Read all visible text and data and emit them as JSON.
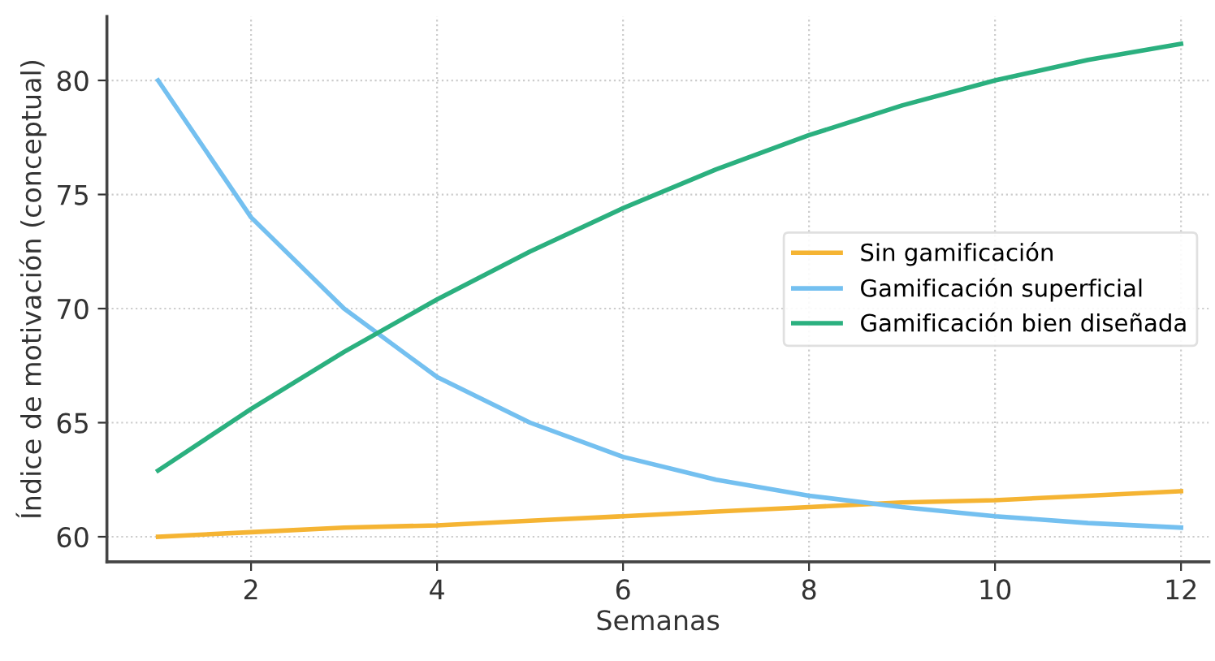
{
  "chart_data": {
    "type": "line",
    "xlabel": "Semanas",
    "ylabel": "Índice de motivación (conceptual)",
    "x": [
      1,
      2,
      3,
      4,
      5,
      6,
      7,
      8,
      9,
      10,
      11,
      12
    ],
    "series": [
      {
        "name": "Sin gamificación",
        "color": "#f5b433",
        "values": [
          60.0,
          60.2,
          60.4,
          60.5,
          60.7,
          60.9,
          61.1,
          61.3,
          61.5,
          61.6,
          61.8,
          62.0
        ]
      },
      {
        "name": "Gamificación superficial",
        "color": "#74c0f0",
        "values": [
          80.0,
          74.0,
          70.0,
          67.0,
          65.0,
          63.5,
          62.5,
          61.8,
          61.3,
          60.9,
          60.6,
          60.4
        ]
      },
      {
        "name": "Gamificación bien diseñada",
        "color": "#2bb07f",
        "values": [
          62.9,
          65.6,
          68.1,
          70.4,
          72.5,
          74.4,
          76.1,
          77.6,
          78.9,
          80.0,
          80.9,
          81.6
        ]
      }
    ],
    "xlim": [
      0.45,
      12.3
    ],
    "xticks": [
      2,
      4,
      6,
      8,
      10,
      12
    ],
    "ylim": [
      58.9,
      82.8
    ],
    "yticks": [
      60,
      65,
      70,
      75,
      80
    ],
    "grid": true,
    "legend": "center right",
    "marker": "none",
    "line_style": "solid"
  }
}
